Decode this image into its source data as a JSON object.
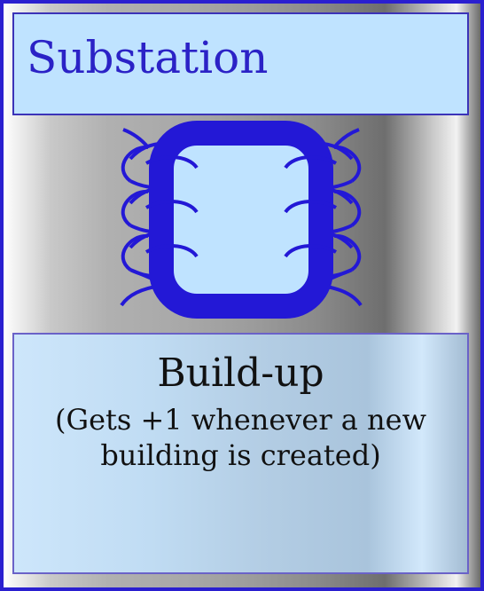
{
  "card": {
    "title": "Substation",
    "ability_name": "Build-up",
    "ability_text": "(Gets +1 whenever a new building is created)",
    "icon": "transformer-icon"
  },
  "colors": {
    "border": "#2a1fd0",
    "title_text": "#2b22c6",
    "title_box": "#bfe3ff",
    "icon_blue": "#2318d6",
    "icon_fill": "#bfe3ff"
  }
}
